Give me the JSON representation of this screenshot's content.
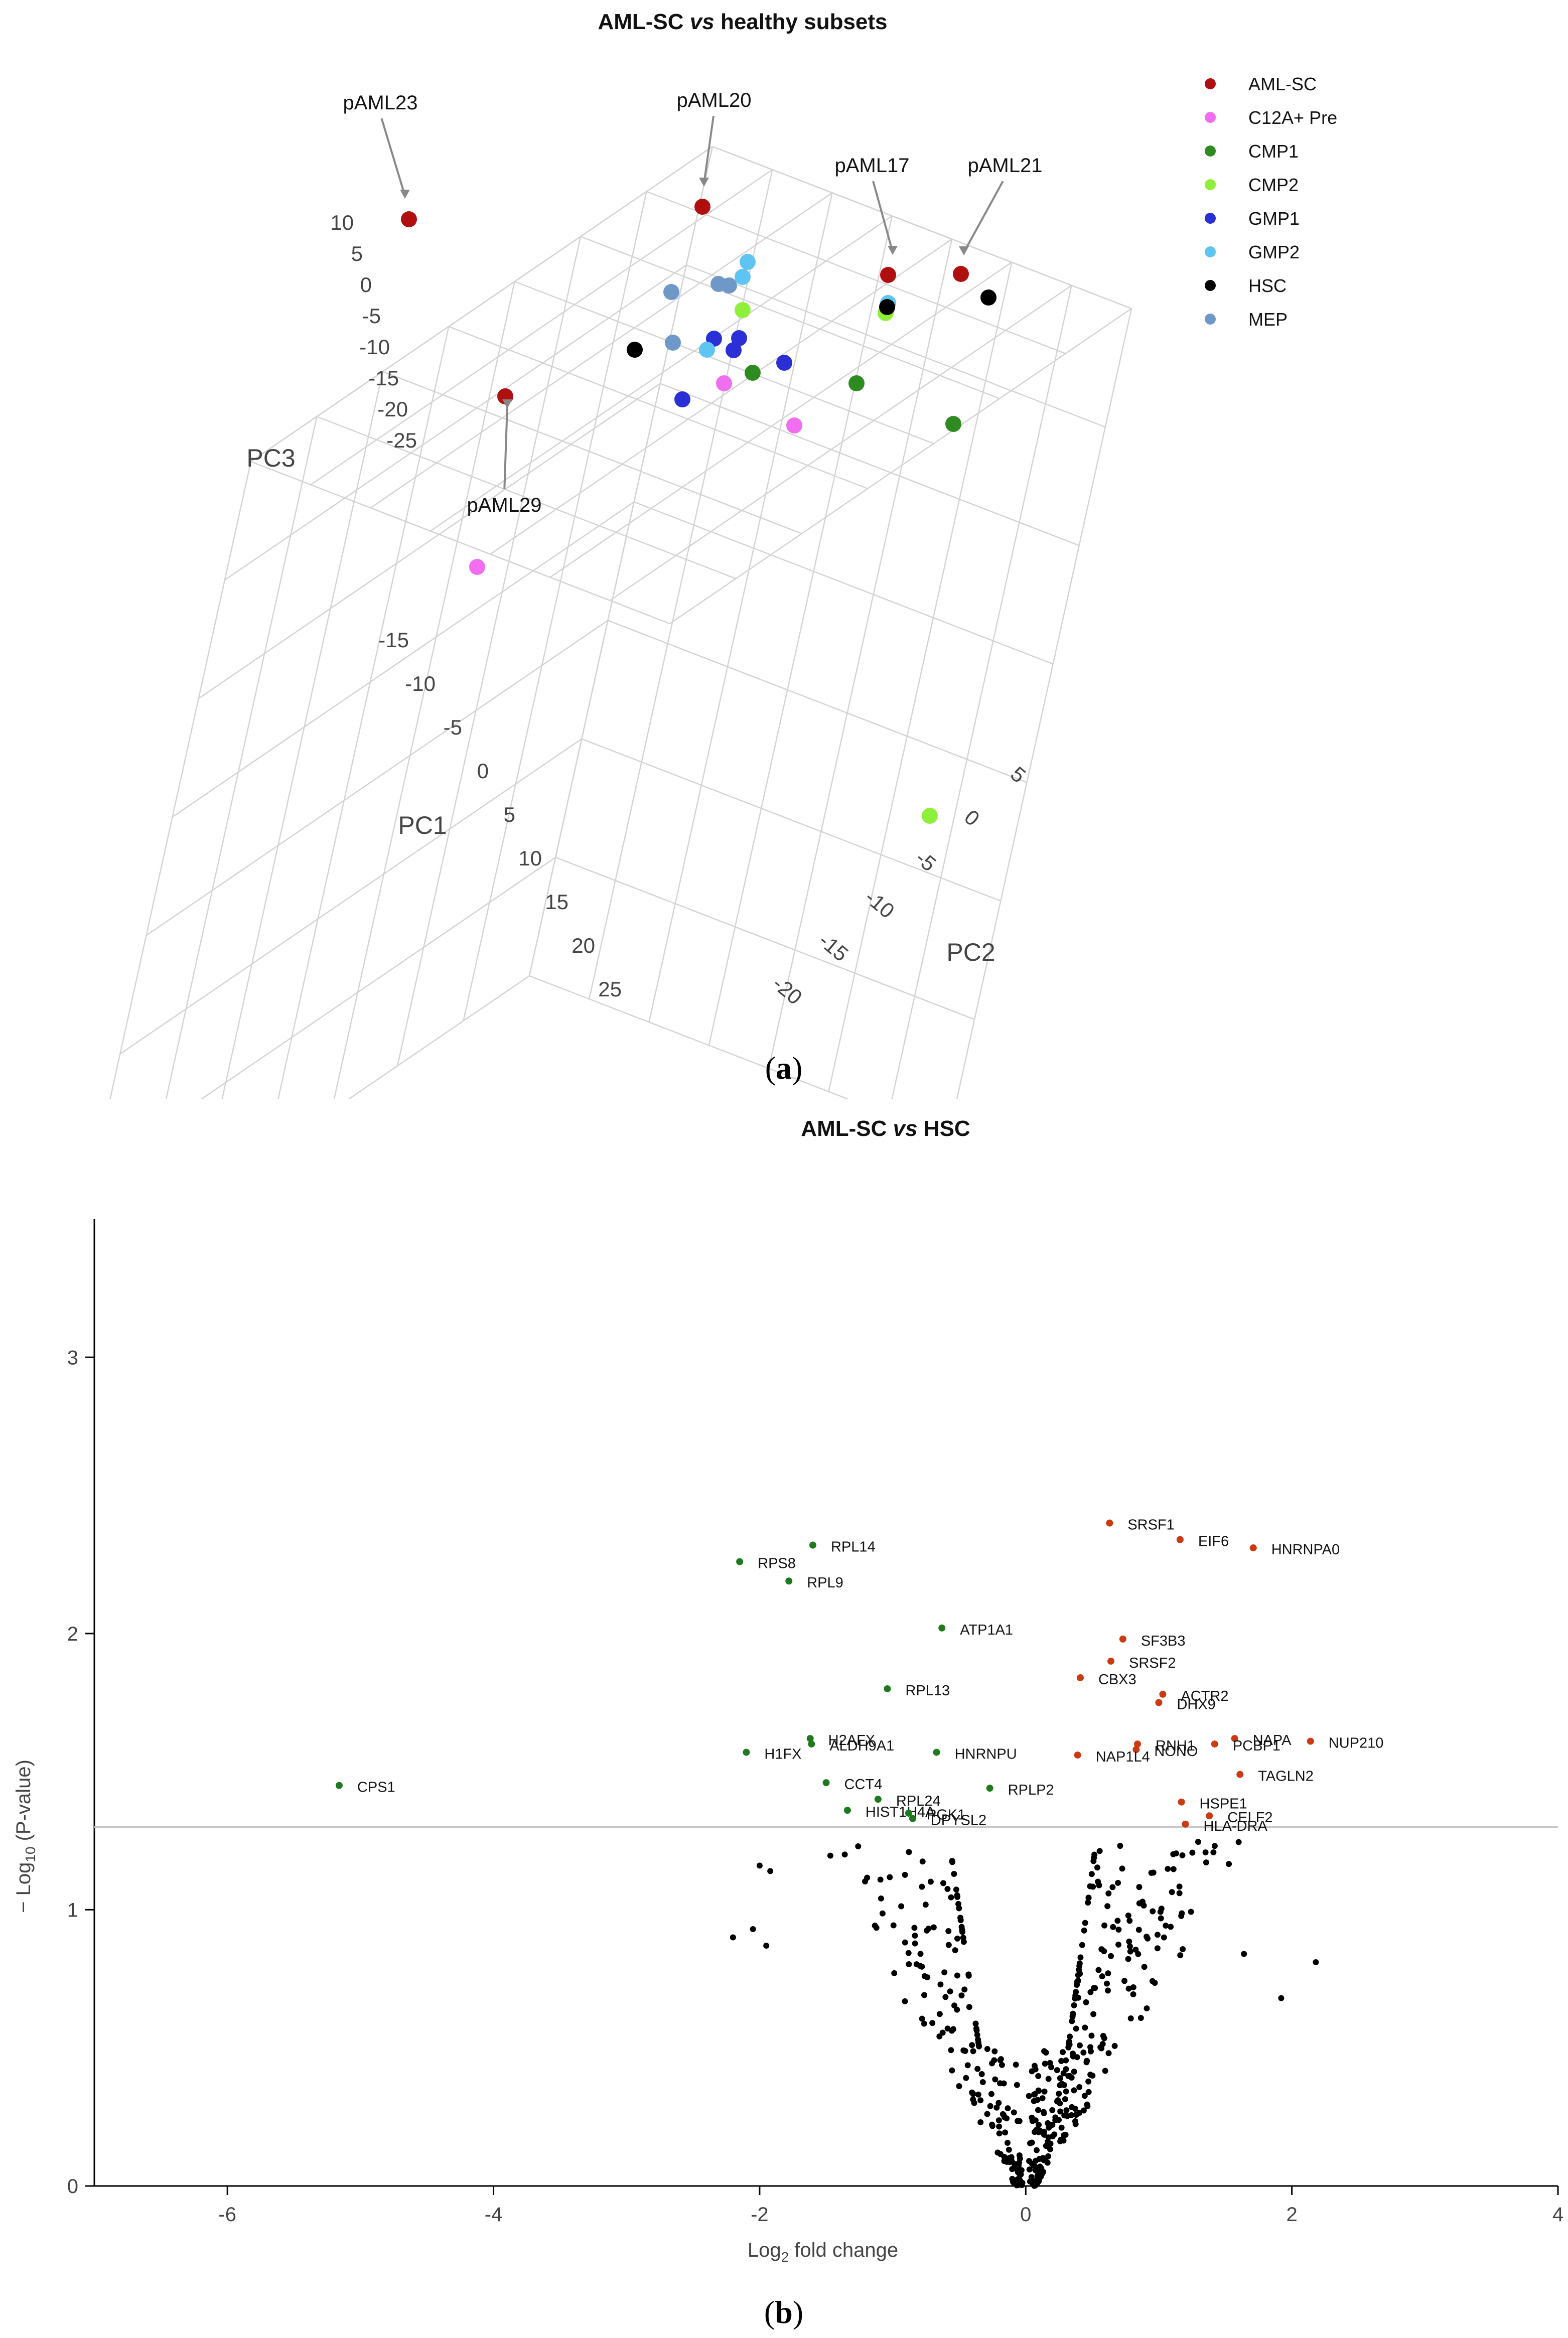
{
  "panel_a_label": "a",
  "panel_b_label": "b",
  "chart_data": [
    {
      "type": "scatter",
      "projection": "3d",
      "title_parts": [
        "AML-SC ",
        "vs",
        " healthy subsets"
      ],
      "axes": {
        "pc1": {
          "label": "PC1",
          "ticks": [
            "-15",
            "-10",
            "-5",
            "0",
            "5",
            "10",
            "15",
            "20",
            "25"
          ]
        },
        "pc2": {
          "label": "PC2",
          "ticks": [
            "-20",
            "-15",
            "-10",
            "-5",
            "0",
            "5"
          ]
        },
        "pc3": {
          "label": "PC3",
          "ticks": [
            "10",
            "5",
            "0",
            "-5",
            "-10",
            "-15",
            "-20",
            "-25"
          ]
        }
      },
      "legend": {
        "placement": "top-right",
        "entries": [
          {
            "name": "AML-SC",
            "color": "#b00f0f"
          },
          {
            "name": "C12A+ Pre",
            "color": "#f26ef0"
          },
          {
            "name": "CMP1",
            "color": "#2e8b1f"
          },
          {
            "name": "CMP2",
            "color": "#8ef03a"
          },
          {
            "name": "GMP1",
            "color": "#2b2fd6"
          },
          {
            "name": "GMP2",
            "color": "#5ec4f2"
          },
          {
            "name": "HSC",
            "color": "#000000"
          },
          {
            "name": "MEP",
            "color": "#6e98c7"
          }
        ]
      },
      "annotations": [
        "pAML23",
        "pAML20",
        "pAML17",
        "pAML21",
        "pAML29"
      ]
    },
    {
      "type": "scatter",
      "title_parts": [
        "AML-SC ",
        "vs",
        " HSC"
      ],
      "xlabel": {
        "prefix": "Log",
        "sub": "2",
        "suffix": " fold change"
      },
      "ylabel": {
        "prefix": "− Log",
        "sub": "10",
        "suffix": " (P-value)"
      },
      "xlim": [
        -7,
        4
      ],
      "ylim": [
        0,
        3.5
      ],
      "xticks": [
        -6,
        -4,
        -2,
        0,
        2,
        4
      ],
      "yticks": [
        0,
        1,
        2,
        3
      ],
      "threshold_y": 1.3,
      "colors": {
        "up": "#cc3a12",
        "down": "#1f7a1f",
        "ns": "#000000"
      },
      "significant_up": [
        {
          "gene": "SRSF1",
          "x": 0.63,
          "y": 2.4
        },
        {
          "gene": "EIF6",
          "x": 1.16,
          "y": 2.34
        },
        {
          "gene": "HNRNPA0",
          "x": 1.71,
          "y": 2.31
        },
        {
          "gene": "SF3B3",
          "x": 0.73,
          "y": 1.98
        },
        {
          "gene": "SRSF2",
          "x": 0.64,
          "y": 1.9
        },
        {
          "gene": "CBX3",
          "x": 0.41,
          "y": 1.84
        },
        {
          "gene": "ACTR2",
          "x": 1.03,
          "y": 1.78
        },
        {
          "gene": "DHX9",
          "x": 1.0,
          "y": 1.75
        },
        {
          "gene": "NAPA",
          "x": 1.57,
          "y": 1.62
        },
        {
          "gene": "NUP210",
          "x": 2.14,
          "y": 1.61
        },
        {
          "gene": "RNH1",
          "x": 0.84,
          "y": 1.6
        },
        {
          "gene": "PCBP1",
          "x": 1.42,
          "y": 1.6
        },
        {
          "gene": "NONO",
          "x": 0.83,
          "y": 1.58
        },
        {
          "gene": "NAP1L4",
          "x": 0.39,
          "y": 1.56
        },
        {
          "gene": "TAGLN2",
          "x": 1.61,
          "y": 1.49
        },
        {
          "gene": "HSPE1",
          "x": 1.17,
          "y": 1.39
        },
        {
          "gene": "CELF2",
          "x": 1.38,
          "y": 1.34
        },
        {
          "gene": "HLA-DRA",
          "x": 1.2,
          "y": 1.31
        }
      ],
      "significant_down": [
        {
          "gene": "RPL14",
          "x": -1.6,
          "y": 2.32
        },
        {
          "gene": "RPS8",
          "x": -2.15,
          "y": 2.26
        },
        {
          "gene": "RPL9",
          "x": -1.78,
          "y": 2.19
        },
        {
          "gene": "ATP1A1",
          "x": -0.63,
          "y": 2.02
        },
        {
          "gene": "RPL13",
          "x": -1.04,
          "y": 1.8
        },
        {
          "gene": "H2AFX",
          "x": -1.62,
          "y": 1.62
        },
        {
          "gene": "ALDH9A1",
          "x": -1.61,
          "y": 1.6
        },
        {
          "gene": "H1FX",
          "x": -2.1,
          "y": 1.57
        },
        {
          "gene": "HNRNPU",
          "x": -0.67,
          "y": 1.57
        },
        {
          "gene": "CCT4",
          "x": -1.5,
          "y": 1.46
        },
        {
          "gene": "RPLP2",
          "x": -0.27,
          "y": 1.44
        },
        {
          "gene": "RPL24",
          "x": -1.11,
          "y": 1.4
        },
        {
          "gene": "HIST1H4A",
          "x": -1.34,
          "y": 1.36
        },
        {
          "gene": "PGK1",
          "x": -0.88,
          "y": 1.35
        },
        {
          "gene": "DPYSL2",
          "x": -0.85,
          "y": 1.33
        },
        {
          "gene": "CPS1",
          "x": -5.16,
          "y": 1.45
        }
      ],
      "nonsignificant_count": 460
    }
  ]
}
